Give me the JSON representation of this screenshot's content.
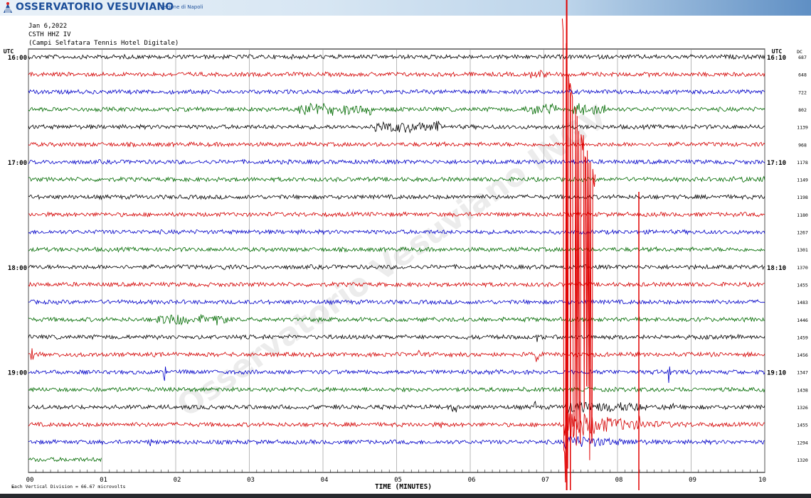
{
  "header": {
    "org_name": "OSSERVATORIO VESUVIANO",
    "org_section": "Sezione di Napoli",
    "date": "Jan 6,2022",
    "station": "CSTH HHZ IV",
    "station_desc": "(Campi Selfatara Tennis Hotel Digitale)"
  },
  "footer": {
    "scale_note": "Each Vertical Division =   66.67 microvolts"
  },
  "watermark": "Osservatorio Vesuviano INGV",
  "chart_data": {
    "type": "line",
    "title": "",
    "xlabel": "TIME (MINUTES)",
    "x_ticks": [
      "00",
      "01",
      "02",
      "03",
      "04",
      "05",
      "06",
      "07",
      "08",
      "09",
      "10"
    ],
    "xlim": [
      0,
      10
    ],
    "left_axis_label": "UTC",
    "right_axis_label": "UTC",
    "right_column_label": "DC",
    "left_time_labels": [
      {
        "row": 0,
        "label": "16:00"
      },
      {
        "row": 6,
        "label": "17:00"
      },
      {
        "row": 12,
        "label": "18:00"
      },
      {
        "row": 18,
        "label": "19:00"
      }
    ],
    "right_time_labels": [
      {
        "row": 0,
        "label": "16:10"
      },
      {
        "row": 6,
        "label": "17:10"
      },
      {
        "row": 12,
        "label": "18:10"
      },
      {
        "row": 18,
        "label": "19:10"
      }
    ],
    "trace_colors": [
      "#000000",
      "#d40000",
      "#0000c8",
      "#006a00"
    ],
    "dc_values": [
      "687",
      "648",
      "722",
      "802",
      "1139",
      "968",
      "1178",
      "1149",
      "1198",
      "1180",
      "1267",
      "1301",
      "1370",
      "1455",
      "1483",
      "1446",
      "1459",
      "1456",
      "1347",
      "1438",
      "1326",
      "1455",
      "1294",
      "1320"
    ],
    "annotations": "Large earthquake signal at about 7.3 minutes on the 19:10 rows; minor events at 0.0, 1.8, 6.9, 8.3 and 8.7 minutes"
  }
}
